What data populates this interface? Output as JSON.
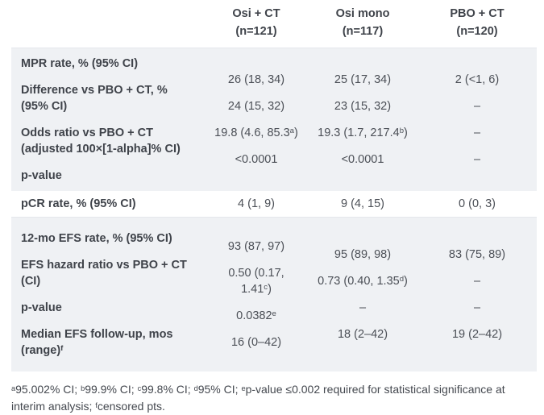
{
  "table": {
    "columns": [
      {
        "line1": "Osi + CT",
        "line2": "(n=121)"
      },
      {
        "line1": "Osi mono",
        "line2": "(n=117)"
      },
      {
        "line1": "PBO + CT",
        "line2": "(n=120)"
      }
    ],
    "sections": [
      {
        "shaded": true,
        "rows": [
          {
            "label": "MPR rate, % (95% CI)",
            "values": [
              "26 (18, 34)",
              "25 (17, 34)",
              "2 (<1, 6)"
            ]
          },
          {
            "label": "Difference vs PBO + CT, %\n(95% CI)",
            "values": [
              "24 (15, 32)",
              "23 (15, 32)",
              "–"
            ]
          },
          {
            "label": "Odds ratio vs PBO + CT\n(adjusted 100×[1-alpha]% CI)",
            "values": [
              "19.8 (4.6, 85.3^a)",
              "19.3 (1.7, 217.4^b)",
              "–"
            ]
          },
          {
            "label": "p-value",
            "values": [
              "<0.0001",
              "<0.0001",
              "–"
            ]
          }
        ]
      },
      {
        "shaded": false,
        "rows": [
          {
            "label": "pCR rate, % (95% CI)",
            "values": [
              "4 (1, 9)",
              "9 (4, 15)",
              "0 (0, 3)"
            ]
          }
        ]
      },
      {
        "shaded": true,
        "rows": [
          {
            "label": "12-mo EFS rate, % (95% CI)",
            "values": [
              "93 (87, 97)",
              "95 (89, 98)",
              "83 (75, 89)"
            ]
          },
          {
            "label": "EFS hazard ratio vs PBO + CT\n(CI)",
            "values": [
              "0.50 (0.17,\n1.41^c)",
              "0.73 (0.40, 1.35^d)",
              "–"
            ]
          },
          {
            "label": "p-value",
            "values": [
              "0.0382^e",
              "–",
              "–"
            ]
          },
          {
            "label": "Median EFS follow-up, mos\n(range)^f",
            "values": [
              "16 (0–42)",
              "18 (2–42)",
              "19 (2–42)"
            ]
          }
        ]
      }
    ],
    "footnote": "^a95.002% CI; ^b99.9% CI; ^c99.8% CI; ^d95% CI; ^ep-value ≤0.002 required for statistical significance at interim analysis; ^fcensored pts.",
    "colors": {
      "shade_bg": "#eff1f4",
      "shade_border": "#e4e7ec",
      "header_text": "#3f434a",
      "label_text": "#3f434a",
      "value_text": "#4b4f56",
      "footnote_text": "#44484f"
    }
  }
}
